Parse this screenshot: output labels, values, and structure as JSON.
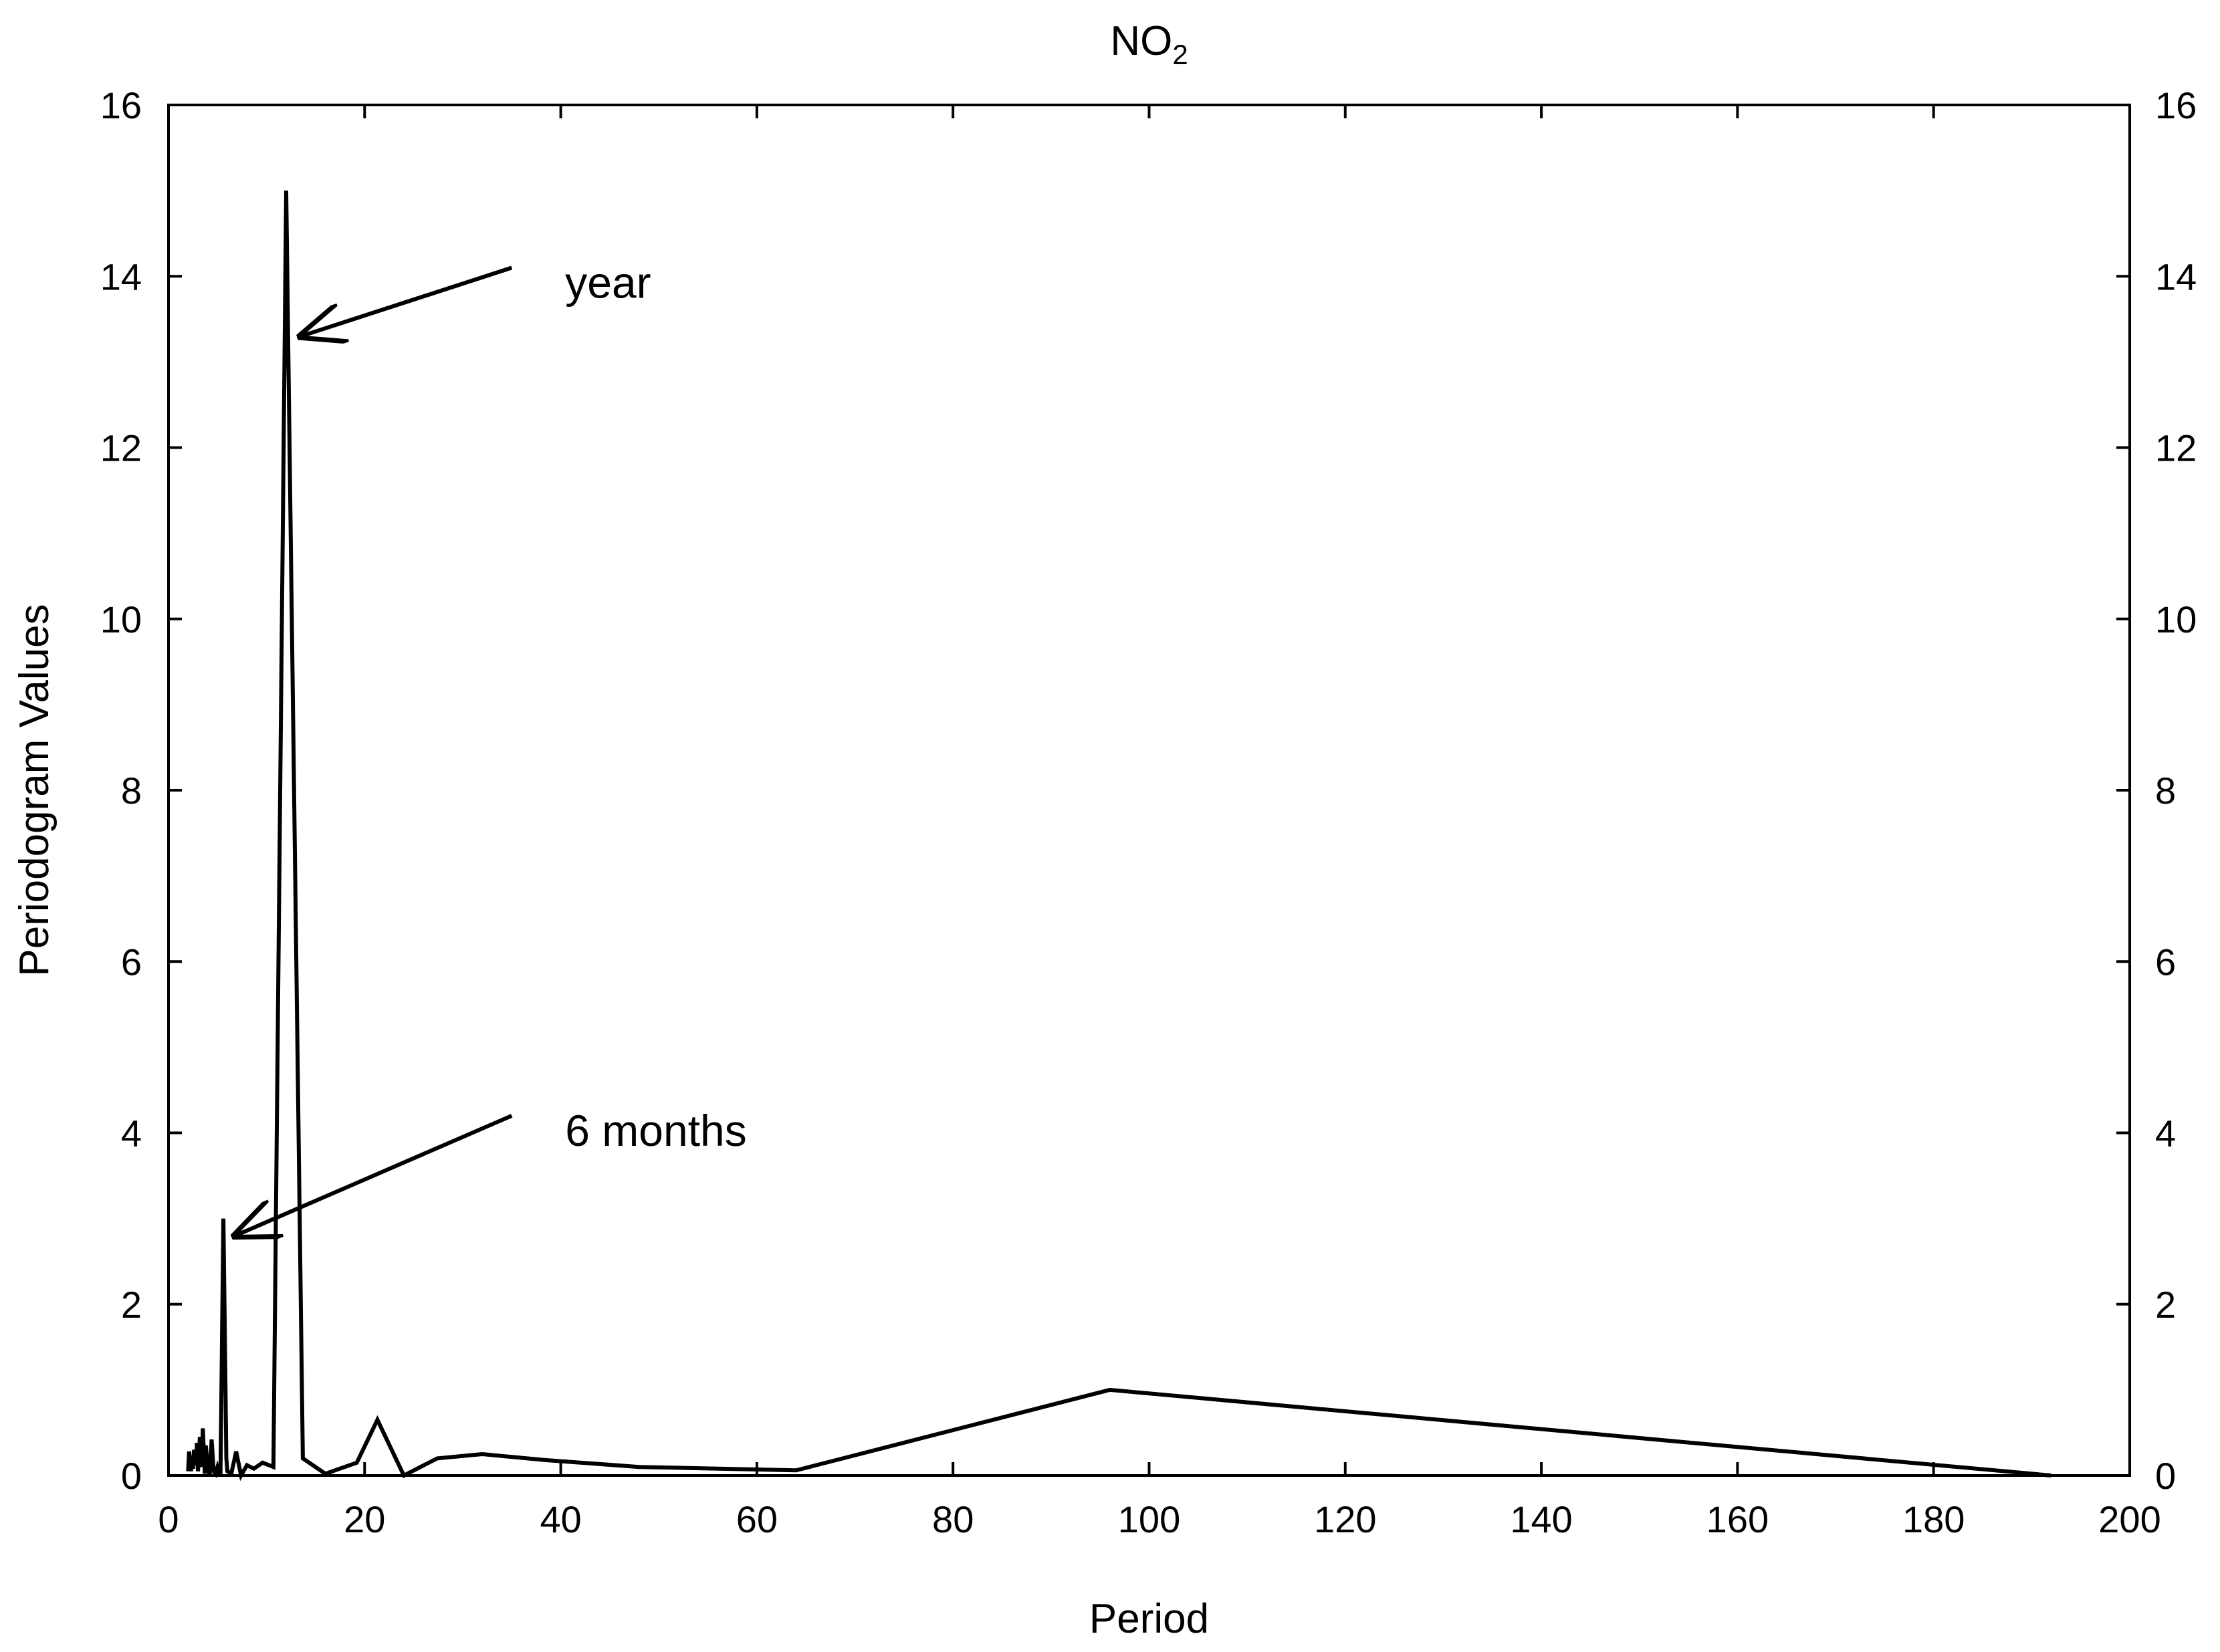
{
  "chart_data": {
    "type": "line",
    "title": "NO",
    "title_subscript": "2",
    "xlabel": "Period",
    "ylabel": "Periodogram Values",
    "xlim": [
      0,
      200
    ],
    "ylim": [
      0,
      16
    ],
    "x_ticks": [
      0,
      20,
      40,
      60,
      80,
      100,
      120,
      140,
      160,
      180,
      200
    ],
    "y_ticks": [
      0,
      2,
      4,
      6,
      8,
      10,
      12,
      14,
      16
    ],
    "right_axis_mirror": true,
    "grid": false,
    "line_color": "#000000",
    "series": [
      {
        "x": [
          2.0,
          2.1,
          2.3,
          2.4,
          2.5,
          2.6,
          2.8,
          2.9,
          3.0,
          3.1,
          3.2,
          3.4,
          3.5,
          3.7,
          3.8,
          4.0,
          4.2,
          4.4,
          4.6,
          4.8,
          5.0,
          5.3,
          5.6,
          5.9,
          6.0,
          6.4,
          6.9,
          7.4,
          8.0,
          8.7,
          9.6,
          10.7,
          12.0,
          13.7,
          16.0,
          19.2,
          21.3,
          24.0,
          27.4,
          32.0,
          38.4,
          48.0,
          64.0,
          96.0,
          192.0
        ],
        "y": [
          0.05,
          0.28,
          0.05,
          0.22,
          0.08,
          0.3,
          0.12,
          0.38,
          0.05,
          0.2,
          0.45,
          0.1,
          0.55,
          0.02,
          0.35,
          0.1,
          0.0,
          0.42,
          0.05,
          0.02,
          0.1,
          0.0,
          3.0,
          0.2,
          0.05,
          0.02,
          0.28,
          0.0,
          0.12,
          0.08,
          0.15,
          0.1,
          15.0,
          0.2,
          0.02,
          0.15,
          0.65,
          0.0,
          0.2,
          0.25,
          0.18,
          0.1,
          0.06,
          1.0,
          0.0
        ]
      }
    ],
    "annotations": [
      {
        "text": "year",
        "target": [
          13.5,
          13.3
        ],
        "from": [
          35,
          14.1
        ]
      },
      {
        "text": "6 months",
        "target": [
          6.8,
          2.8
        ],
        "from": [
          35,
          4.2
        ]
      }
    ]
  }
}
